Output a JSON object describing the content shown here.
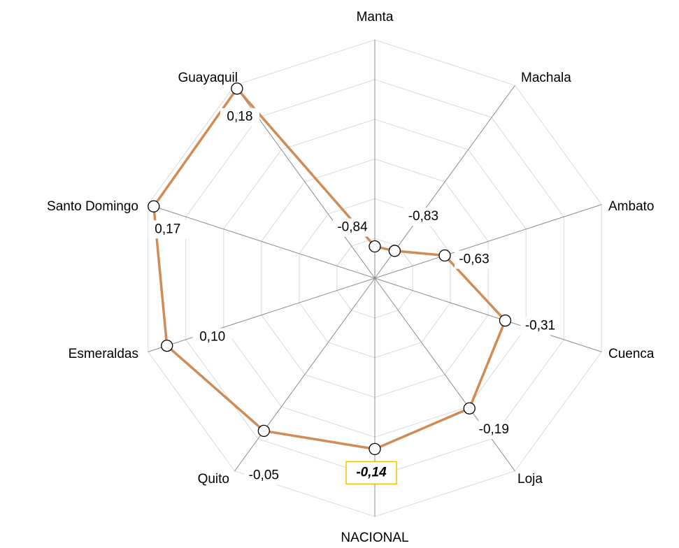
{
  "chart_data": {
    "type": "radar",
    "categories": [
      "Manta",
      "Machala",
      "Ambato",
      "Cuenca",
      "Loja",
      "NACIONAL",
      "Quito",
      "Esmeraldas",
      "Santo Domingo",
      "Guayaquil"
    ],
    "series": [
      {
        "color": "#d18b55",
        "values": [
          -0.84,
          -0.83,
          -0.63,
          -0.31,
          -0.19,
          -0.14,
          -0.05,
          0.1,
          0.17,
          0.18
        ],
        "value_labels": [
          "-0,84",
          "-0,83",
          "-0,63",
          "-0,31",
          "-0,19",
          "-0,14",
          "-0,05",
          "0,10",
          "0,17",
          "0,18"
        ]
      }
    ],
    "ylim": [
      -1,
      0.2
    ],
    "yticks": [
      -1,
      -0.8,
      -0.6,
      -0.4,
      -0.2,
      0,
      0.2
    ],
    "grid": true,
    "highlight": [
      5
    ]
  }
}
